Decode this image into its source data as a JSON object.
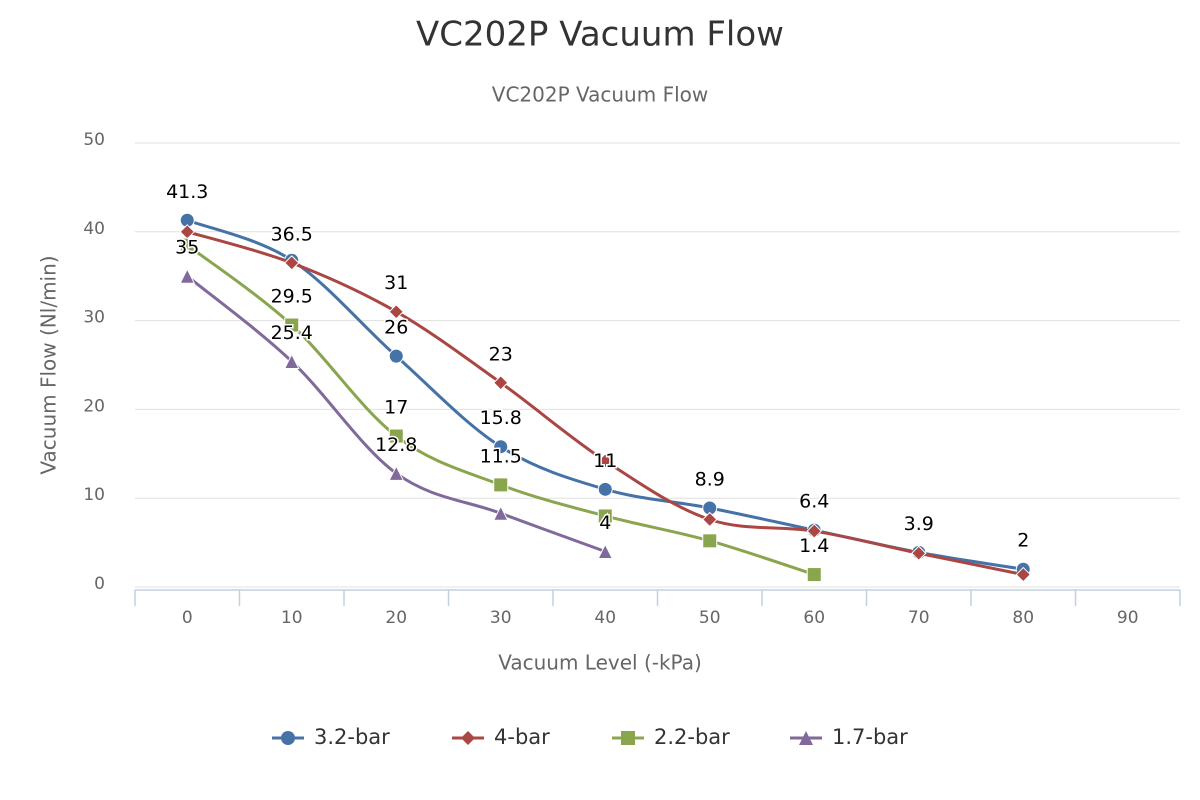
{
  "chart_data": {
    "type": "line",
    "smooth": true,
    "title": "VC202P Vacuum Flow",
    "subtitle": "VC202P Vacuum Flow",
    "x_label": "Vacuum Level (-kPa)",
    "y_label": "Vacuum Flow (Nl/min)",
    "categories": [
      "0",
      "10",
      "20",
      "30",
      "40",
      "50",
      "60",
      "70",
      "80",
      "90"
    ],
    "ylim": [
      0,
      50
    ],
    "yticks": [
      0,
      10,
      20,
      30,
      40,
      50
    ],
    "grid": true,
    "legend": "bottom",
    "series": [
      {
        "name": "3.2-bar",
        "color": "#4572a7",
        "marker": "circle",
        "values": [
          41.3,
          36.8,
          26,
          15.8,
          11,
          8.9,
          6.4,
          3.9,
          2,
          null
        ],
        "value_labels": [
          "41.3",
          null,
          "26",
          "15.8",
          "11",
          "8.9",
          "6.4",
          "3.9",
          "2",
          null
        ]
      },
      {
        "name": "4-bar",
        "color": "#aa4643",
        "marker": "diamond",
        "values": [
          40,
          36.5,
          31,
          23,
          14.2,
          7.6,
          6.3,
          3.8,
          1.4,
          null
        ],
        "value_labels": [
          null,
          "36.5",
          "31",
          "23",
          null,
          null,
          null,
          null,
          null,
          null
        ]
      },
      {
        "name": "2.2-bar",
        "color": "#89a54e",
        "marker": "square",
        "values": [
          38.5,
          29.5,
          17,
          11.5,
          8,
          5.2,
          1.4,
          null,
          null,
          null
        ],
        "value_labels": [
          null,
          "29.5",
          "17",
          "11.5",
          null,
          null,
          "1.4",
          null,
          null,
          null
        ]
      },
      {
        "name": "1.7-bar",
        "color": "#80699b",
        "marker": "triangle",
        "values": [
          35,
          25.4,
          12.8,
          8.3,
          4,
          null,
          null,
          null,
          null,
          null
        ],
        "value_labels": [
          "35",
          "25.4",
          "12.8",
          null,
          "4",
          null,
          null,
          null,
          null,
          null
        ]
      }
    ]
  }
}
